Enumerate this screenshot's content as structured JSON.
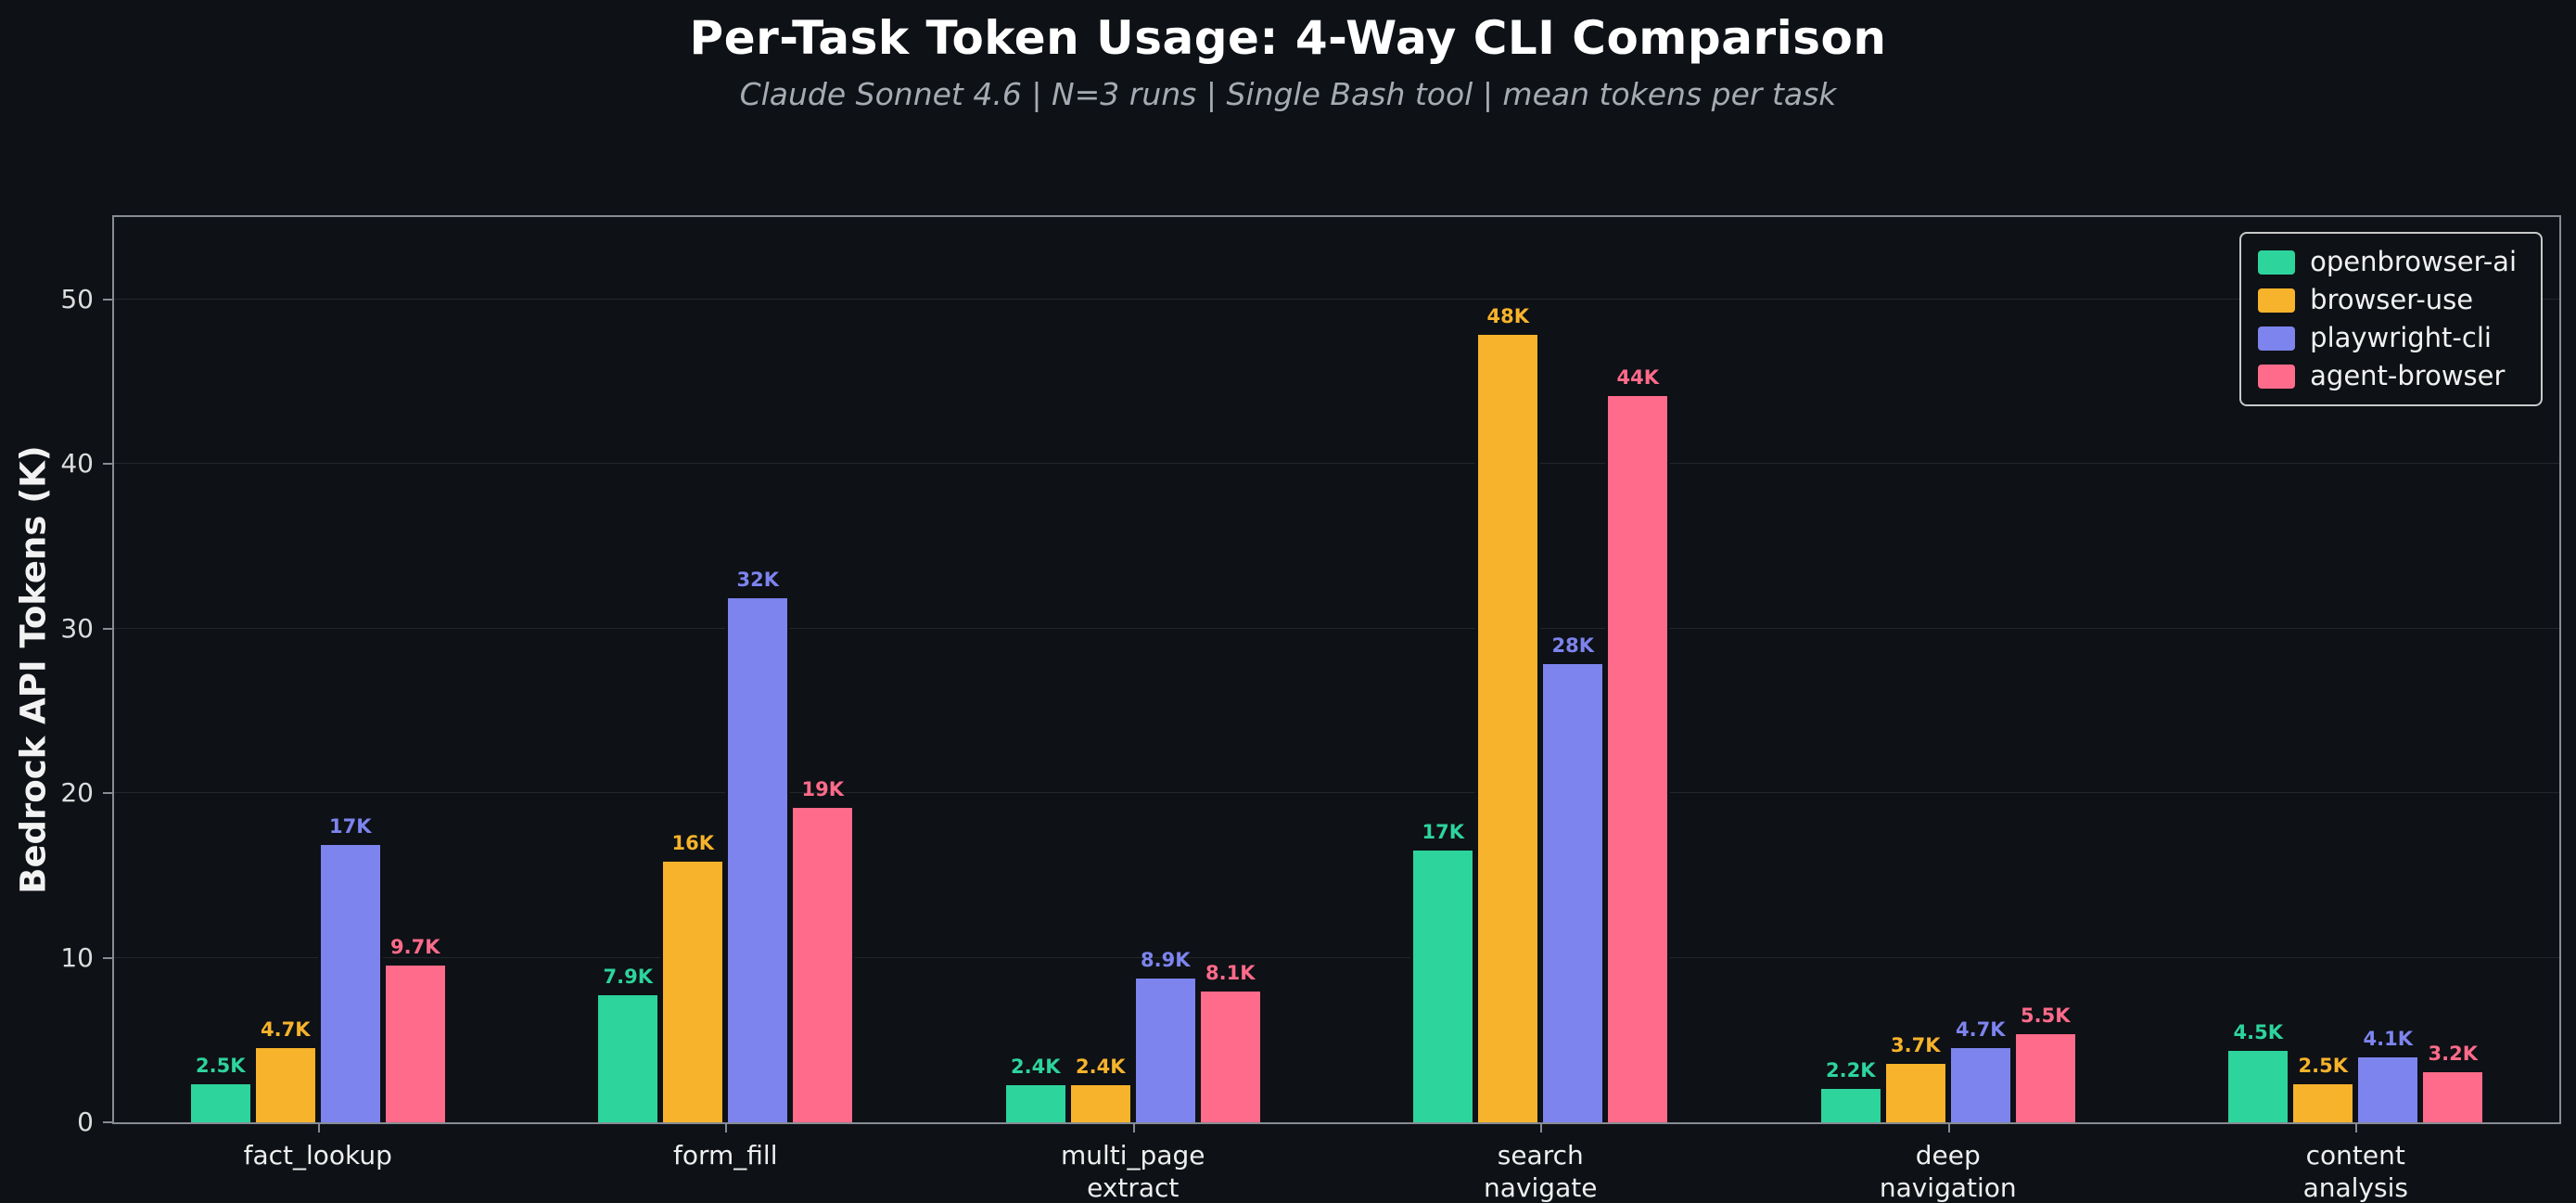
{
  "chart_data": {
    "type": "bar",
    "title": "Per-Task Token Usage: 4-Way CLI Comparison",
    "subtitle": "Claude Sonnet 4.6  |  N=3 runs  |  Single Bash tool  |  mean tokens per task",
    "xlabel": "",
    "ylabel": "Bedrock API Tokens (K)",
    "ylim": [
      0,
      55
    ],
    "yticks": [
      0,
      10,
      20,
      30,
      40,
      50
    ],
    "grid": true,
    "legend_position": "upper right",
    "categories": [
      "fact_lookup",
      "form_fill",
      "multi_page\nextract",
      "search\nnavigate",
      "deep\nnavigation",
      "content\nanalysis"
    ],
    "series": [
      {
        "name": "openbrowser-ai",
        "color": "#2dd49c",
        "values": [
          2.5,
          7.9,
          2.4,
          16.7,
          2.2,
          4.5
        ],
        "labels": [
          "2.5K",
          "7.9K",
          "2.4K",
          "17K",
          "2.2K",
          "4.5K"
        ]
      },
      {
        "name": "browser-use",
        "color": "#f7b32b",
        "values": [
          4.7,
          16,
          2.4,
          48,
          3.7,
          2.5
        ],
        "labels": [
          "4.7K",
          "16K",
          "2.4K",
          "48K",
          "3.7K",
          "2.5K"
        ]
      },
      {
        "name": "playwright-cli",
        "color": "#7d84ee",
        "values": [
          17,
          32,
          8.9,
          28,
          4.7,
          4.1
        ],
        "labels": [
          "17K",
          "32K",
          "8.9K",
          "28K",
          "4.7K",
          "4.1K"
        ]
      },
      {
        "name": "agent-browser",
        "color": "#ff6b8a",
        "values": [
          9.7,
          19.3,
          8.1,
          44.3,
          5.5,
          3.2
        ],
        "labels": [
          "9.7K",
          "19K",
          "8.1K",
          "44K",
          "5.5K",
          "3.2K"
        ]
      }
    ],
    "colors": {
      "background": "#0e1116",
      "text": "#ffffff",
      "muted_text": "#a6abb3",
      "spine": "#878c94",
      "grid": "rgba(255,255,255,0.09)"
    }
  }
}
